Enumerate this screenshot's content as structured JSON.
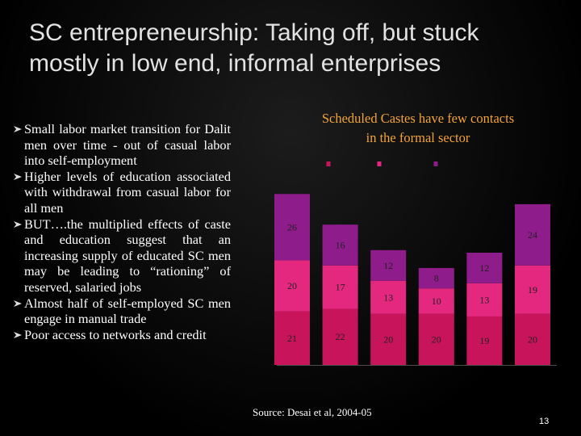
{
  "title": "SC entrepreneurship: Taking off, but stuck mostly in low end, informal enterprises",
  "bullets": [
    "Small labor market transition for Dalit men over time - out of casual labor into self-employment",
    "Higher levels of education associated with withdrawal from casual labor for all men",
    "BUT….the multiplied effects of caste and education suggest that an increasing supply of educated SC men may be leading to “rationing” of reserved, salaried jobs",
    "Almost half of self-employed SC men engage in manual trade",
    "Poor access to networks and credit"
  ],
  "chart_data": {
    "type": "bar",
    "stacked": true,
    "title": "Scheduled Castes have few contacts in the formal sector",
    "series": [
      {
        "color": "#c8145a",
        "values": [
          21,
          22,
          20,
          20,
          19,
          20
        ]
      },
      {
        "color": "#e4287f",
        "values": [
          20,
          17,
          13,
          10,
          13,
          19
        ]
      },
      {
        "color": "#8e1c8a",
        "values": [
          26,
          16,
          12,
          8,
          12,
          24
        ]
      }
    ],
    "source": "Source: Desai et al, 2004-05"
  },
  "page_number": "13"
}
